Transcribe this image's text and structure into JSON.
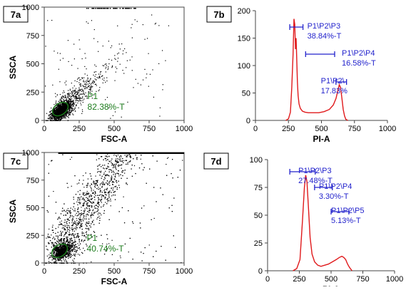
{
  "chart_data": [
    {
      "id": "7a",
      "type": "scatter",
      "panel_label": "7a",
      "xlabel": "FSC-A",
      "ylabel": "SSCA",
      "xlim": [
        0,
        1000
      ],
      "ylim": [
        0,
        1000
      ],
      "xticks": [
        "0",
        "250",
        "500",
        "750",
        "1000"
      ],
      "yticks": [
        "0",
        "250",
        "500",
        "750",
        "1000"
      ],
      "gate": {
        "name": "P1",
        "value": "82.38%-T",
        "center": [
          115,
          100
        ]
      },
      "cloud": {
        "center": [
          120,
          90
        ],
        "spread": "compact, elongated to upper right",
        "sparse_points_up_to": [
          900,
          900
        ]
      }
    },
    {
      "id": "7b",
      "type": "line",
      "panel_label": "7b",
      "xlabel": "PI-A",
      "xlim": [
        0,
        1000
      ],
      "ylim": [
        0,
        200
      ],
      "xticks": [
        "0",
        "250",
        "500",
        "750",
        "1000"
      ],
      "yticks": [
        "0",
        "50",
        "100",
        "150",
        "200"
      ],
      "series": [
        {
          "color": "#e0191b",
          "x": [
            230,
            250,
            265,
            275,
            285,
            292,
            298,
            303,
            308,
            313,
            318,
            323,
            330,
            340,
            355,
            375,
            400,
            440,
            480,
            520,
            560,
            590,
            610,
            625,
            635,
            645,
            655,
            665,
            675,
            685,
            700
          ],
          "y": [
            0,
            3,
            15,
            60,
            120,
            185,
            175,
            130,
            150,
            110,
            70,
            45,
            30,
            22,
            17,
            15,
            14,
            14,
            14,
            16,
            20,
            28,
            40,
            55,
            65,
            60,
            40,
            20,
            8,
            2,
            0
          ]
        }
      ],
      "gates": [
        {
          "name": "P1\\P2\\P3",
          "value": "38.84%-T",
          "range": [
            260,
            360
          ]
        },
        {
          "name": "P1\\P2\\P4",
          "value": "16.58%-T",
          "range": [
            380,
            600
          ]
        },
        {
          "name": "P1\\P2\\",
          "value": "17.83%",
          "range": [
            610,
            690
          ]
        }
      ]
    },
    {
      "id": "7c",
      "type": "scatter",
      "panel_label": "7c",
      "xlabel": "FSC-A",
      "ylabel": "SSCA",
      "xlim": [
        0,
        1000
      ],
      "ylim": [
        0,
        1000
      ],
      "xticks": [
        "0",
        "250",
        "500",
        "750",
        "1000"
      ],
      "yticks": [
        "0",
        "250",
        "500",
        "750",
        "1000"
      ],
      "gate": {
        "name": "P1",
        "value": "40.74%-T",
        "center": [
          110,
          110
        ]
      },
      "cloud": {
        "center": [
          130,
          110
        ],
        "spread": "broad diagonal band saturating the top edge",
        "sparse_points_up_to": [
          1000,
          1000
        ]
      }
    },
    {
      "id": "7d",
      "type": "line",
      "panel_label": "7d",
      "xlabel": "PI-A",
      "xlim": [
        0,
        1000
      ],
      "ylim": [
        0,
        100
      ],
      "xticks": [
        "0",
        "250",
        "500",
        "750",
        "1000"
      ],
      "yticks": [
        "0",
        "25",
        "50",
        "75",
        "100"
      ],
      "series": [
        {
          "color": "#e0191b",
          "x": [
            200,
            230,
            255,
            275,
            290,
            300,
            310,
            320,
            335,
            350,
            370,
            395,
            420,
            450,
            480,
            510,
            540,
            565,
            585,
            600,
            615,
            630,
            645,
            665
          ],
          "y": [
            0,
            2,
            10,
            45,
            75,
            86,
            80,
            60,
            30,
            15,
            8,
            5,
            4,
            5,
            6,
            8,
            10,
            12,
            13,
            12,
            10,
            6,
            3,
            0
          ]
        }
      ],
      "gates": [
        {
          "name": "P1\\P2\\P3",
          "value": "27.48%-T",
          "range": [
            175,
            375
          ]
        },
        {
          "name": "P1\\P2\\P4",
          "value": "3.30%-T",
          "range": [
            370,
            510
          ]
        },
        {
          "name": "P1\\P2\\P5",
          "value": "5.13%-T",
          "range": [
            500,
            640
          ]
        }
      ]
    }
  ]
}
